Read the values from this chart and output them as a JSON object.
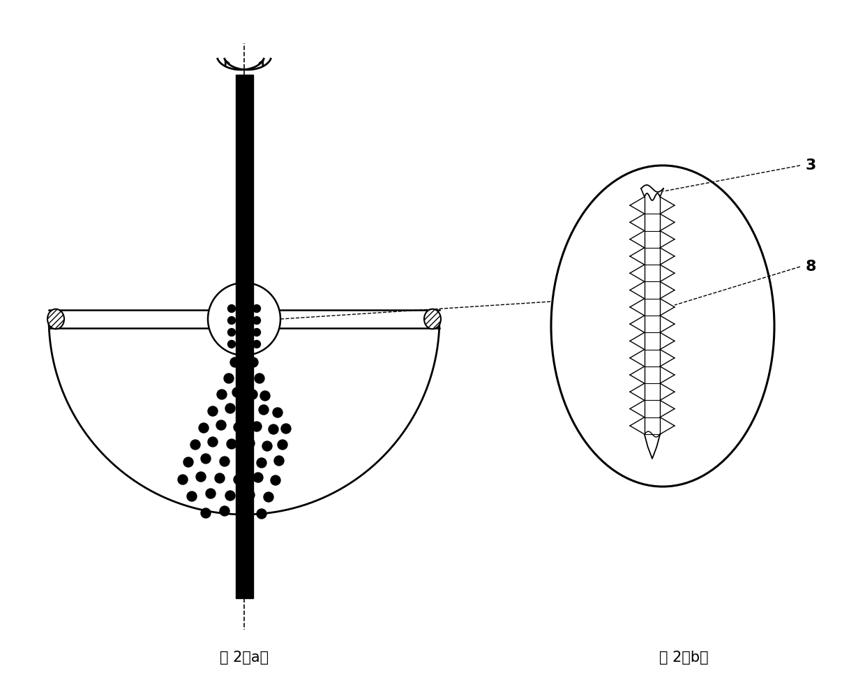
{
  "fig_width": 12.4,
  "fig_height": 9.97,
  "bg_color": "#ffffff",
  "label_a": "图 2（a）",
  "label_b": "图 2（b）",
  "label_3": "3",
  "label_8": "8",
  "line_color": "#000000"
}
